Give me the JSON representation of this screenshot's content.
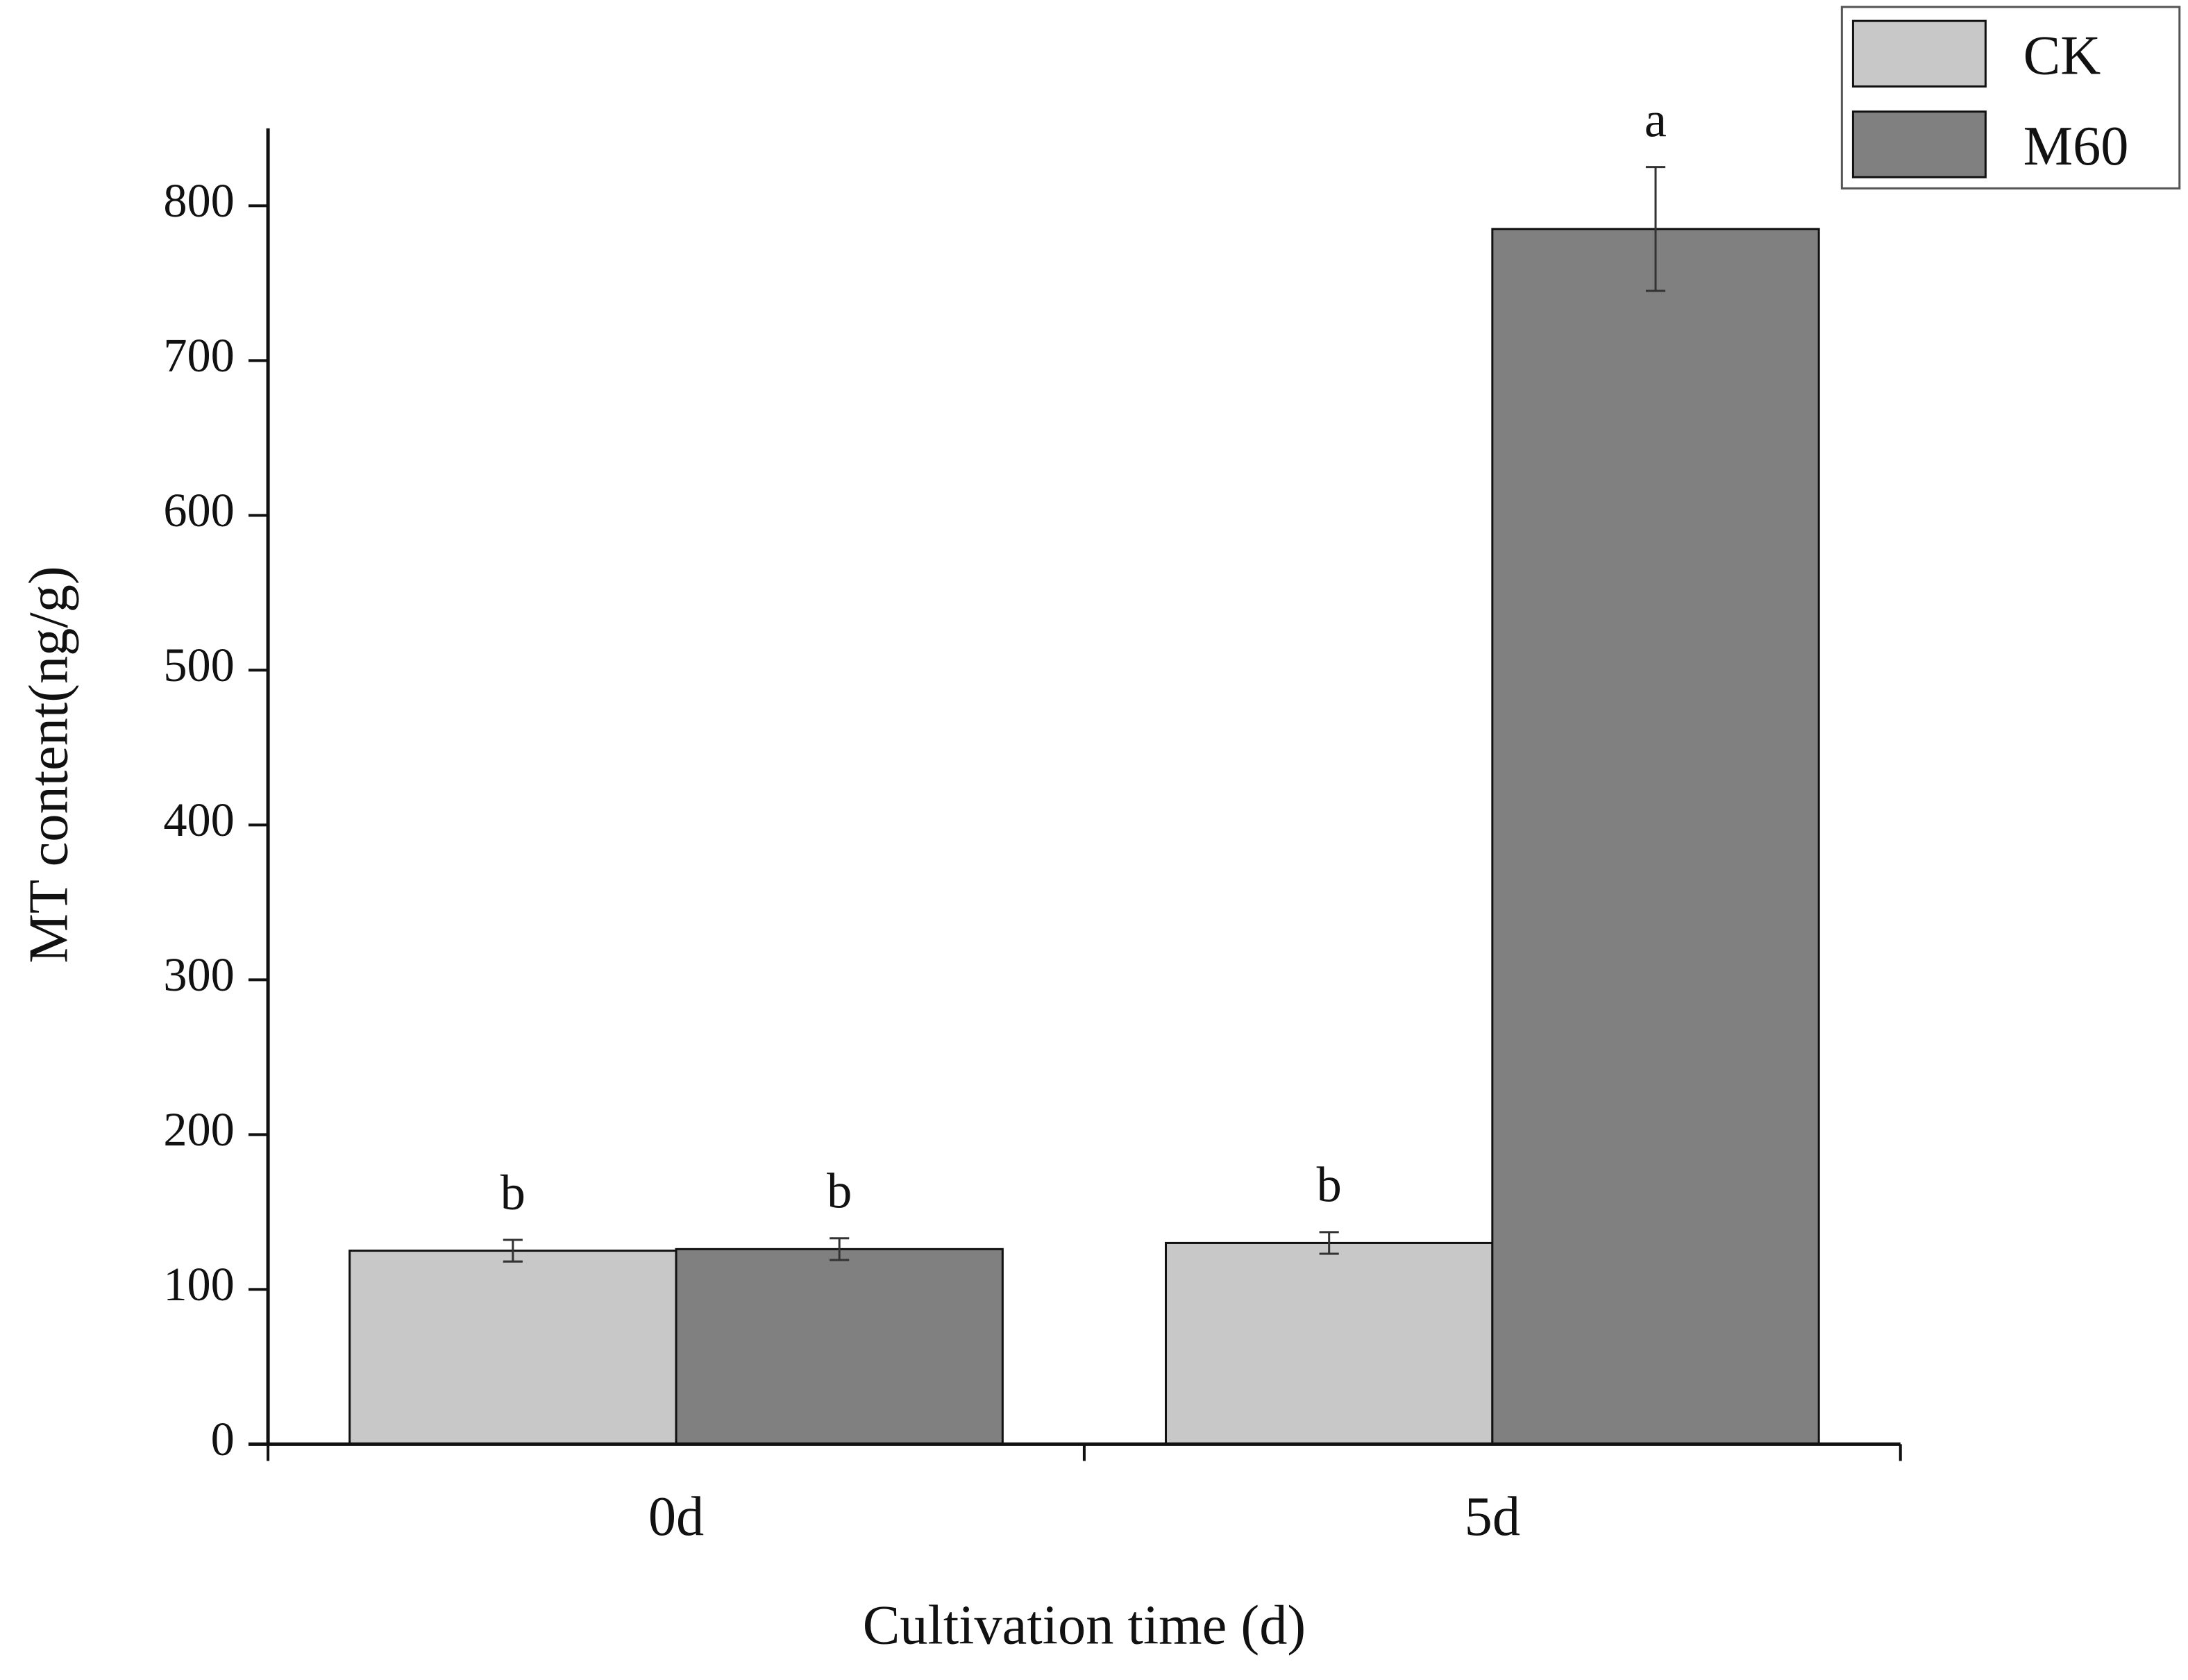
{
  "chart_data": {
    "type": "bar",
    "x_label": "Cultivation time (d)",
    "y_label": "MT content(ng/g)",
    "categories": [
      "0d",
      "5d"
    ],
    "series": [
      {
        "name": "CK",
        "color": "#c8c8c8",
        "values": [
          125,
          130
        ],
        "errors": [
          7,
          7
        ],
        "labels": [
          "b",
          "b"
        ]
      },
      {
        "name": "M60",
        "color": "#808080",
        "values": [
          126,
          785
        ],
        "errors": [
          7,
          40
        ],
        "labels": [
          "b",
          "a"
        ]
      }
    ],
    "ylim": [
      0,
      850
    ],
    "yticks": [
      0,
      100,
      200,
      300,
      400,
      500,
      600,
      700,
      800
    ],
    "legend": "upper right"
  }
}
